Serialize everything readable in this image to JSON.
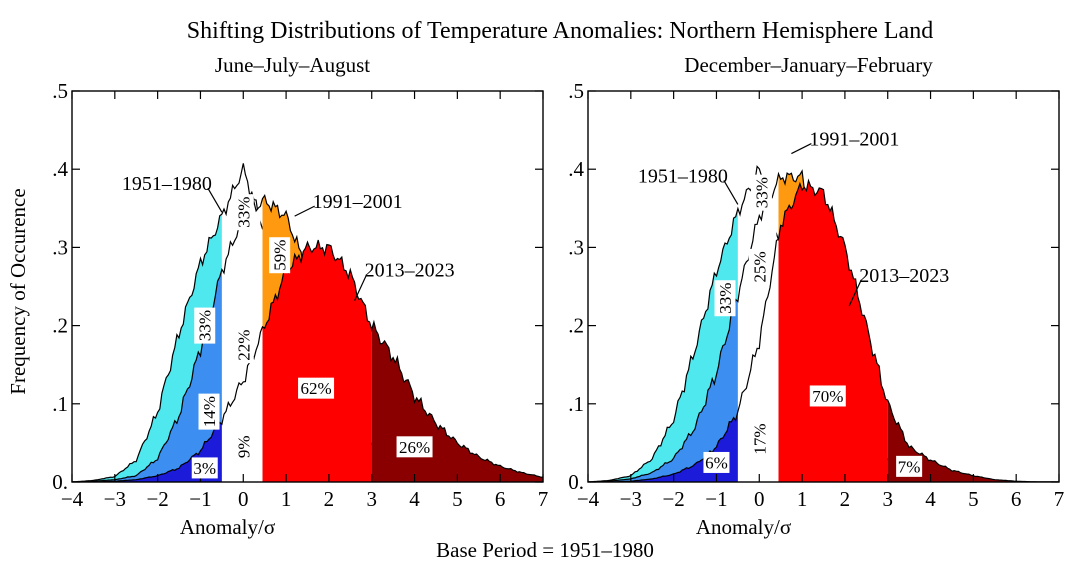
{
  "figure": {
    "title": "Shifting Distributions of Temperature Anomalies: Northern Hemisphere Land",
    "footer": "Base Period = 1951–1980"
  },
  "chart_data": [
    {
      "type": "area",
      "subtitle": "June–July–August",
      "xlabel": "Anomaly/σ",
      "ylabel": "Frequency of Occurence",
      "xlim": [
        -4,
        7
      ],
      "ylim": [
        0,
        0.5
      ],
      "xticks": [
        "−4",
        "−3",
        "−2",
        "−1",
        "0",
        "1",
        "2",
        "3",
        "4",
        "5",
        "6",
        "7"
      ],
      "yticks": [
        "0.",
        ".1",
        ".2",
        ".3",
        ".4",
        ".5"
      ],
      "x": [
        -4,
        -3.5,
        -3,
        -2.5,
        -2,
        -1.5,
        -1,
        -0.5,
        0,
        0.5,
        1,
        1.5,
        2,
        2.5,
        3,
        3.5,
        4,
        4.5,
        5,
        5.5,
        6,
        6.5,
        7
      ],
      "series": [
        {
          "name": "1951–1980",
          "values": [
            0.0,
            0.002,
            0.007,
            0.028,
            0.09,
            0.19,
            0.28,
            0.34,
            0.4,
            0.32,
            0.16,
            0.06,
            0.015,
            0.003,
            0.0,
            0,
            0,
            0,
            0,
            0,
            0,
            0,
            0
          ]
        },
        {
          "name": "1991–2001",
          "values": [
            0.0,
            0.001,
            0.003,
            0.008,
            0.03,
            0.085,
            0.17,
            0.27,
            0.34,
            0.36,
            0.34,
            0.27,
            0.18,
            0.1,
            0.05,
            0.02,
            0.008,
            0.002,
            0,
            0,
            0,
            0,
            0
          ]
        },
        {
          "name": "2013–2023",
          "values": [
            0.0,
            0.0,
            0.001,
            0.003,
            0.008,
            0.018,
            0.04,
            0.08,
            0.13,
            0.2,
            0.27,
            0.3,
            0.3,
            0.265,
            0.2,
            0.16,
            0.11,
            0.075,
            0.05,
            0.032,
            0.02,
            0.012,
            0.006
          ]
        }
      ],
      "annotations": [
        {
          "text": "1951–1980",
          "x": -0.5,
          "y": 0.345
        },
        {
          "text": "1991–2001",
          "x": 1.2,
          "y": 0.34
        },
        {
          "text": "2013–2023",
          "x": 2.6,
          "y": 0.232
        }
      ],
      "percent_labels": [
        {
          "text": "33%",
          "x": -0.9,
          "y": 0.2,
          "rotate": true
        },
        {
          "text": "14%",
          "x": -0.8,
          "y": 0.09,
          "rotate": true
        },
        {
          "text": "3%",
          "x": -0.9,
          "y": 0.018,
          "rotate": false
        },
        {
          "text": "33%",
          "x": 0.0,
          "y": 0.345,
          "rotate": true
        },
        {
          "text": "22%",
          "x": 0.0,
          "y": 0.175,
          "rotate": true
        },
        {
          "text": "9%",
          "x": 0.0,
          "y": 0.045,
          "rotate": true
        },
        {
          "text": "59%",
          "x": 0.85,
          "y": 0.29,
          "rotate": true
        },
        {
          "text": "62%",
          "x": 1.7,
          "y": 0.12,
          "rotate": false
        },
        {
          "text": "26%",
          "x": 4.0,
          "y": 0.045,
          "rotate": false
        }
      ]
    },
    {
      "type": "area",
      "subtitle": "December–January–February",
      "xlabel": "Anomaly/σ",
      "ylabel": "",
      "xlim": [
        -4,
        7
      ],
      "ylim": [
        0,
        0.5
      ],
      "xticks": [
        "−4",
        "−3",
        "−2",
        "−1",
        "0",
        "1",
        "2",
        "3",
        "4",
        "5",
        "6",
        "7"
      ],
      "yticks": [
        "0.",
        ".1",
        ".2",
        ".3",
        ".4",
        ".5"
      ],
      "x": [
        -4,
        -3.5,
        -3,
        -2.5,
        -2,
        -1.5,
        -1,
        -0.5,
        0,
        0.5,
        1,
        1.5,
        2,
        2.5,
        3,
        3.5,
        4,
        4.5,
        5,
        5.5,
        6,
        6.5,
        7
      ],
      "series": [
        {
          "name": "1951–1980",
          "values": [
            0.0,
            0.002,
            0.008,
            0.03,
            0.08,
            0.17,
            0.27,
            0.345,
            0.4,
            0.3,
            0.15,
            0.05,
            0.01,
            0.001,
            0.0,
            0,
            0,
            0,
            0,
            0,
            0,
            0,
            0
          ]
        },
        {
          "name": "1991–2001",
          "values": [
            0.0,
            0.001,
            0.004,
            0.012,
            0.03,
            0.07,
            0.14,
            0.24,
            0.34,
            0.39,
            0.39,
            0.3,
            0.18,
            0.08,
            0.03,
            0.008,
            0.001,
            0,
            0,
            0,
            0,
            0,
            0
          ]
        },
        {
          "name": "2013–2023",
          "values": [
            0.0,
            0.0,
            0.001,
            0.004,
            0.01,
            0.022,
            0.045,
            0.09,
            0.18,
            0.33,
            0.38,
            0.37,
            0.3,
            0.2,
            0.1,
            0.045,
            0.028,
            0.015,
            0.008,
            0.003,
            0.001,
            0.0,
            0.0
          ]
        }
      ],
      "annotations": [
        {
          "text": "1951–1980",
          "x": -0.5,
          "y": 0.355
        },
        {
          "text": "1991–2001",
          "x": 0.75,
          "y": 0.42
        },
        {
          "text": "2013–2023",
          "x": 2.1,
          "y": 0.225
        }
      ],
      "percent_labels": [
        {
          "text": "33%",
          "x": -0.8,
          "y": 0.235,
          "rotate": true
        },
        {
          "text": "6%",
          "x": -1.0,
          "y": 0.025,
          "rotate": false
        },
        {
          "text": "33%",
          "x": 0.05,
          "y": 0.37,
          "rotate": true
        },
        {
          "text": "25%",
          "x": 0.0,
          "y": 0.275,
          "rotate": true
        },
        {
          "text": "17%",
          "x": 0.0,
          "y": 0.055,
          "rotate": true
        },
        {
          "text": "70%",
          "x": 1.6,
          "y": 0.11,
          "rotate": false
        },
        {
          "text": "7%",
          "x": 3.5,
          "y": 0.02,
          "rotate": false
        }
      ]
    }
  ]
}
